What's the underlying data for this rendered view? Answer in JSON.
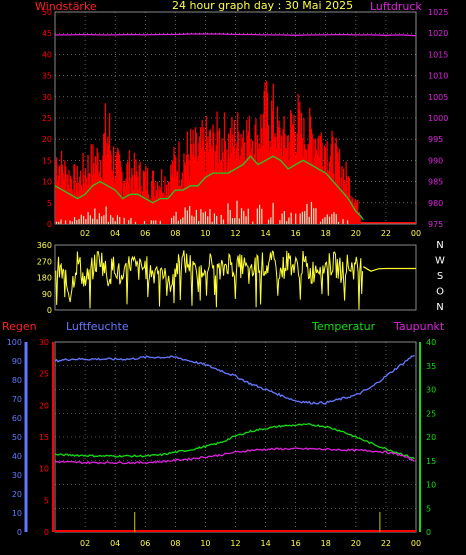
{
  "page": {
    "title": "24 hour graph day : 30 Mai 2025"
  },
  "colors": {
    "background": "#000000",
    "wind": "#ff0000",
    "wind_avg": "#22cc22",
    "gust_bar": "#cceecc",
    "pressure": "#dd22dd",
    "direction": "#ffff33",
    "rain": "#ff0000",
    "humidity": "#6677ff",
    "temperature": "#11dd11",
    "dewpoint": "#dd22dd",
    "grid": "#bbbbbb"
  },
  "chart_data": [
    {
      "type": "line",
      "panel": "wind-pressure",
      "labels": {
        "left": "Windstärke",
        "right": "Luftdruck"
      },
      "y_left_ticks": [
        "0",
        "5",
        "10",
        "15",
        "20",
        "25",
        "30",
        "35",
        "40",
        "45",
        "50"
      ],
      "y_left_range": [
        0,
        50
      ],
      "y_right_ticks": [
        "975",
        "980",
        "985",
        "990",
        "995",
        "1000",
        "1005",
        "1010",
        "1015",
        "1020",
        "1025"
      ],
      "y_right_range": [
        975,
        1025
      ],
      "x_ticks": [
        "02",
        "04",
        "06",
        "08",
        "10",
        "12",
        "14",
        "16",
        "18",
        "20",
        "22",
        "00"
      ],
      "x_range": [
        0,
        24
      ],
      "grid": true,
      "series": [
        {
          "key": "pressure",
          "x": [
            0,
            1,
            2,
            3,
            4,
            5,
            6,
            7,
            8,
            9,
            10,
            11,
            12,
            13,
            14,
            15,
            16,
            17,
            18,
            19,
            20,
            21,
            22,
            23,
            24
          ],
          "values": [
            1019.6,
            1019.6,
            1019.7,
            1019.6,
            1019.6,
            1019.7,
            1019.6,
            1019.7,
            1019.7,
            1019.8,
            1019.8,
            1019.8,
            1019.7,
            1019.7,
            1019.6,
            1019.6,
            1019.5,
            1019.6,
            1019.6,
            1019.7,
            1019.6,
            1019.6,
            1019.5,
            1019.6,
            1019.4
          ]
        },
        {
          "key": "wind_avg",
          "x": [
            0,
            0.5,
            1,
            1.5,
            2,
            2.5,
            3,
            3.5,
            4,
            4.5,
            5,
            5.5,
            6,
            6.5,
            7,
            7.5,
            8,
            8.5,
            9,
            9.5,
            10,
            10.5,
            11,
            11.5,
            12,
            12.5,
            13,
            13.5,
            14,
            14.5,
            15,
            15.5,
            16,
            16.5,
            17,
            17.5,
            18,
            18.5,
            19,
            19.5,
            20,
            20.3,
            20.5
          ],
          "values": [
            9,
            8,
            7,
            6,
            7,
            9,
            10,
            9,
            8,
            6,
            7,
            7,
            6,
            5,
            6,
            6,
            8,
            8,
            9,
            9,
            11,
            12,
            12,
            12,
            13,
            14,
            16,
            14,
            15,
            16,
            15,
            13,
            14,
            15,
            14,
            13,
            12,
            10,
            8,
            6,
            3,
            2,
            1
          ]
        },
        {
          "key": "wind_max",
          "x": [
            0,
            0.5,
            1,
            1.5,
            2,
            2.5,
            3,
            3.5,
            4,
            4.5,
            5,
            5.5,
            6,
            6.5,
            7,
            7.5,
            8,
            8.5,
            9,
            9.5,
            10,
            10.5,
            11,
            11.5,
            12,
            12.5,
            13,
            13.5,
            14,
            14.5,
            15,
            15.5,
            16,
            16.5,
            17,
            17.5,
            18,
            18.5,
            19,
            19.5,
            20,
            20.3
          ],
          "values": [
            22,
            18,
            15,
            14,
            18,
            20,
            21,
            33,
            19,
            17,
            18,
            16,
            15,
            14,
            15,
            14,
            20,
            22,
            24,
            23,
            26,
            25,
            28,
            26,
            27,
            30,
            26,
            27,
            35,
            34,
            25,
            27,
            35,
            26,
            28,
            27,
            25,
            22,
            18,
            14,
            8,
            3
          ]
        },
        {
          "key": "gust",
          "x": [
            0,
            0.5,
            1,
            1.5,
            2,
            2.5,
            3,
            3.5,
            4,
            4.5,
            5,
            5.5,
            6,
            6.5,
            7,
            7.5,
            8,
            8.5,
            9,
            9.5,
            10,
            10.5,
            11,
            11.5,
            12,
            12.5,
            13,
            13.5,
            14,
            14.5,
            15,
            15.5,
            16,
            16.5,
            17,
            17.5,
            18,
            18.5,
            19,
            19.5,
            20
          ],
          "values": [
            4,
            3,
            2,
            2,
            3,
            5,
            4,
            5,
            3,
            2,
            2,
            1,
            1,
            2,
            1,
            0,
            3,
            4,
            5,
            4,
            5,
            6,
            4,
            5,
            6,
            5,
            4,
            5,
            6,
            5,
            4,
            6,
            5,
            4,
            6,
            5,
            3,
            3,
            2,
            1,
            0
          ]
        }
      ]
    },
    {
      "type": "scatter",
      "panel": "wind-direction",
      "y_ticks": [
        "360",
        "270",
        "180",
        "90",
        "0"
      ],
      "y_range": [
        0,
        360
      ],
      "compass_labels": [
        "N",
        "W",
        "S",
        "O",
        "N"
      ],
      "x_range": [
        0,
        24
      ],
      "series": [
        {
          "key": "direction",
          "x": [
            0,
            0.5,
            1,
            1.5,
            2,
            2.5,
            3,
            3.5,
            4,
            4.5,
            5,
            5.5,
            6,
            6.5,
            7,
            7.5,
            8,
            8.5,
            9,
            9.5,
            10,
            10.5,
            11,
            11.5,
            12,
            12.5,
            13,
            13.5,
            14,
            14.5,
            15,
            15.5,
            16,
            16.5,
            17,
            17.5,
            18,
            18.5,
            19,
            19.5,
            20,
            20.5,
            21,
            21.5,
            22,
            23,
            24
          ],
          "values": [
            250,
            200,
            90,
            280,
            150,
            230,
            300,
            180,
            260,
            140,
            270,
            220,
            240,
            200,
            260,
            120,
            230,
            270,
            250,
            160,
            280,
            240,
            200,
            270,
            230,
            250,
            180,
            270,
            240,
            260,
            210,
            280,
            230,
            260,
            200,
            250,
            240,
            260,
            220,
            250,
            230,
            240,
            215,
            228,
            230,
            230,
            230
          ]
        }
      ]
    },
    {
      "type": "line",
      "panel": "rain-humidity-temperature",
      "labels": {
        "rain": "Regen",
        "humidity": "Luftfeuchte",
        "temperature": "Temperatur",
        "dewpoint": "Taupunkt"
      },
      "y_humidity_ticks": [
        "0",
        "10",
        "20",
        "30",
        "40",
        "50",
        "60",
        "70",
        "80",
        "90",
        "100"
      ],
      "y_humidity_range": [
        0,
        100
      ],
      "y_rain_ticks": [
        "0",
        "5",
        "10",
        "15",
        "20",
        "25",
        "30"
      ],
      "y_rain_range": [
        0,
        30
      ],
      "y_temp_ticks": [
        "0",
        "5",
        "10",
        "15",
        "20",
        "25",
        "30",
        "35",
        "40"
      ],
      "y_temp_range": [
        0,
        40
      ],
      "x_ticks": [
        "02",
        "04",
        "06",
        "08",
        "10",
        "12",
        "14",
        "16",
        "18",
        "20",
        "22",
        "00"
      ],
      "x_range": [
        0,
        24
      ],
      "grid": true,
      "series": [
        {
          "key": "humidity",
          "x": [
            0,
            1,
            2,
            3,
            4,
            5,
            6,
            7,
            8,
            9,
            10,
            11,
            12,
            13,
            14,
            15,
            16,
            17,
            18,
            19,
            20,
            21,
            22,
            23,
            24
          ],
          "values": [
            90,
            91,
            91,
            91,
            91,
            91,
            92,
            92,
            92,
            90,
            88,
            85,
            82,
            78,
            75,
            72,
            69,
            68,
            68,
            70,
            72,
            76,
            82,
            88,
            94
          ]
        },
        {
          "key": "temperature",
          "x": [
            0,
            1,
            2,
            3,
            4,
            5,
            6,
            7,
            8,
            9,
            10,
            11,
            12,
            13,
            14,
            15,
            16,
            17,
            18,
            19,
            20,
            21,
            22,
            23,
            24
          ],
          "values": [
            16.3,
            16.2,
            16.1,
            16,
            16,
            16,
            16,
            16.2,
            16.8,
            17.3,
            18,
            18.8,
            20.2,
            21.2,
            21.8,
            22.3,
            22.5,
            22.6,
            22.2,
            21.3,
            20,
            18.7,
            17.5,
            16.5,
            15.3
          ]
        },
        {
          "key": "dewpoint",
          "x": [
            0,
            1,
            2,
            3,
            4,
            5,
            6,
            7,
            8,
            9,
            10,
            11,
            12,
            13,
            14,
            15,
            16,
            17,
            18,
            19,
            20,
            21,
            22,
            23,
            24
          ],
          "values": [
            14.8,
            14.7,
            14.6,
            14.6,
            14.6,
            14.6,
            14.6,
            14.8,
            15.1,
            15.4,
            15.8,
            16.2,
            16.8,
            17.2,
            17.4,
            17.5,
            17.5,
            17.5,
            17.4,
            17.3,
            17.2,
            17.1,
            16.8,
            16.2,
            14.8
          ]
        },
        {
          "key": "rain",
          "x": [
            5.3,
            21.6
          ],
          "values": [
            0,
            0
          ]
        }
      ],
      "rain_ticks_x": [
        5.3,
        21.6
      ]
    }
  ]
}
